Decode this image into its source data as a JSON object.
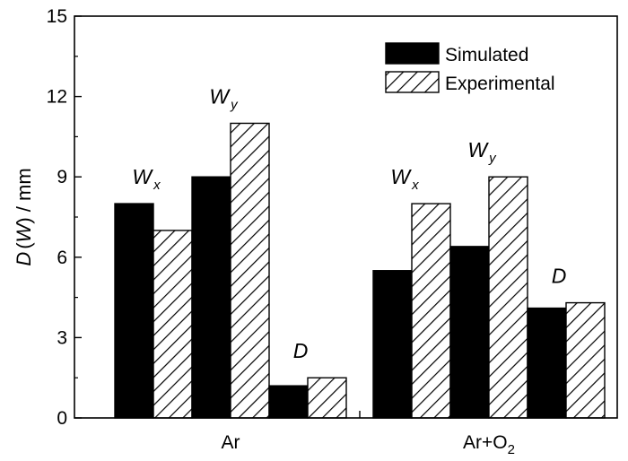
{
  "chart_data": {
    "type": "bar",
    "title": "",
    "xlabel": "",
    "ylabel": {
      "prefix": "D",
      "paren_open": "(",
      "var": "W",
      "suffix": ") / mm"
    },
    "ylim": [
      0,
      15
    ],
    "yticks": [
      0,
      3,
      6,
      9,
      12,
      15
    ],
    "groups": [
      {
        "label": "Ar",
        "label_sub": "",
        "bars": [
          {
            "metric": "Wx",
            "simulated": 8.0,
            "experimental": 7.0
          },
          {
            "metric": "Wy",
            "simulated": 9.0,
            "experimental": 11.0
          },
          {
            "metric": "D",
            "simulated": 1.2,
            "experimental": 1.5
          }
        ]
      },
      {
        "label": "Ar+O",
        "label_sub": "2",
        "bars": [
          {
            "metric": "Wx",
            "simulated": 5.5,
            "experimental": 8.0
          },
          {
            "metric": "Wy",
            "simulated": 6.4,
            "experimental": 9.0
          },
          {
            "metric": "D",
            "simulated": 4.1,
            "experimental": 4.3
          }
        ]
      }
    ],
    "series": [
      {
        "name": "Simulated",
        "fill": "#000000",
        "pattern": "solid"
      },
      {
        "name": "Experimental",
        "fill": "#ffffff",
        "pattern": "diagonal-hatch"
      }
    ],
    "legend_position": "top-right",
    "annotations": [
      {
        "main": "W",
        "sub": "x",
        "group": 0,
        "bar": 0
      },
      {
        "main": "W",
        "sub": "y",
        "group": 0,
        "bar": 1
      },
      {
        "main": "D",
        "sub": "",
        "group": 0,
        "bar": 2
      },
      {
        "main": "W",
        "sub": "x",
        "group": 1,
        "bar": 0
      },
      {
        "main": "W",
        "sub": "y",
        "group": 1,
        "bar": 1
      },
      {
        "main": "D",
        "sub": "",
        "group": 1,
        "bar": 2
      }
    ],
    "grid": false
  }
}
